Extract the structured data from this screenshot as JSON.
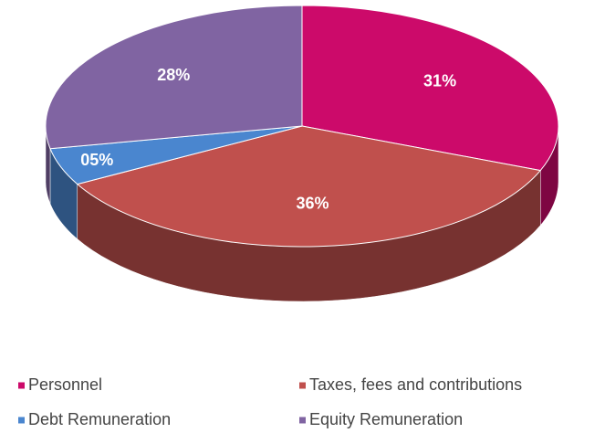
{
  "chart_data": {
    "type": "pie",
    "categories": [
      "Personnel",
      "Taxes, fees and contributions",
      "Debt Remuneration",
      "Equity Remuneration"
    ],
    "values": [
      31,
      36,
      5,
      28
    ],
    "value_labels": [
      "31%",
      "36%",
      "05%",
      "28%"
    ],
    "colors": [
      "#cc0a6a",
      "#c0504d",
      "#4a86cf",
      "#8064a2"
    ],
    "legend": "bottom"
  }
}
